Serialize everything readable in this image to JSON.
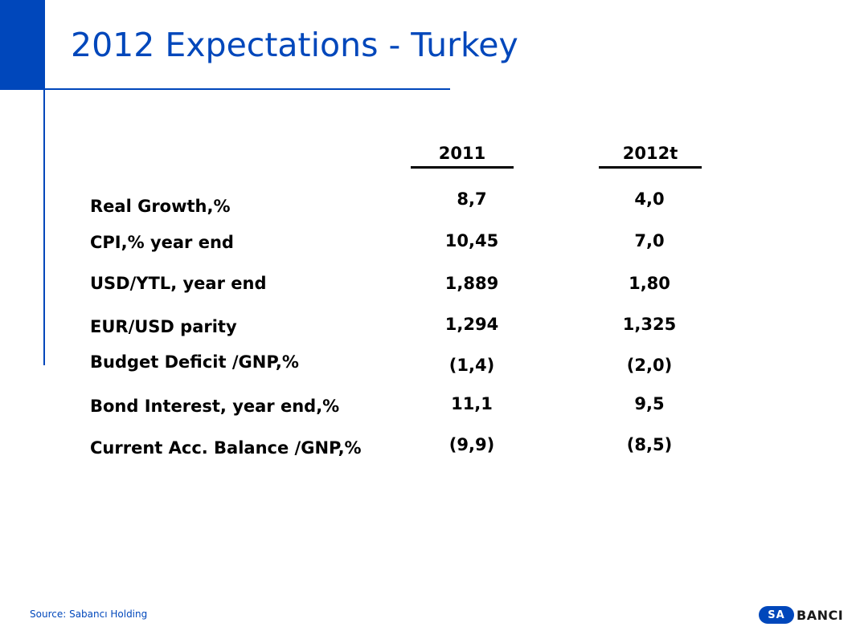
{
  "title": "2012 Expectations - Turkey",
  "columns": [
    "2011",
    "2012t"
  ],
  "rows": [
    {
      "label": "Real Growth,%",
      "values": [
        "8,7",
        "4,0"
      ]
    },
    {
      "label": "CPI,% year end",
      "values": [
        "10,45",
        "7,0"
      ]
    },
    {
      "label": "USD/YTL, year end",
      "values": [
        "1,889",
        "1,80"
      ]
    },
    {
      "label": "EUR/USD parity",
      "values": [
        "1,294",
        "1,325"
      ]
    },
    {
      "label": "Budget Deficit /GNP,%",
      "values": [
        "(1,4)",
        "(2,0)"
      ]
    },
    {
      "label": "Bond Interest, year end,%",
      "values": [
        "11,1",
        "9,5"
      ]
    },
    {
      "label": "Current Acc. Balance /GNP,%",
      "values": [
        "(9,9)",
        "(8,5)"
      ]
    }
  ],
  "source": "Source: Sabancı Holding",
  "logo": {
    "badge": "SA",
    "text": "BANCI"
  },
  "colors": {
    "accent": "#0047BB",
    "text": "#000000"
  }
}
